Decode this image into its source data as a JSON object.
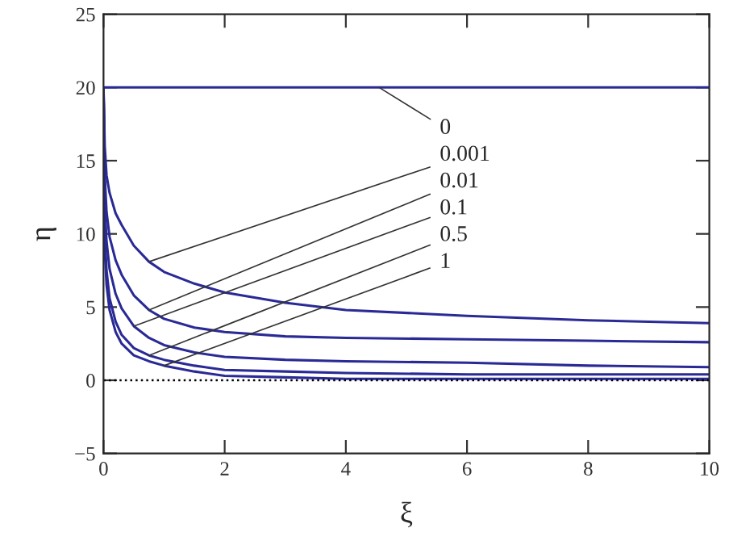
{
  "chart_data": {
    "type": "line",
    "xlabel": "ξ",
    "ylabel": "η",
    "xlim": [
      0,
      10
    ],
    "ylim": [
      -5,
      25
    ],
    "xticks": [
      0,
      2,
      4,
      6,
      8,
      10
    ],
    "yticks": [
      -5,
      0,
      5,
      10,
      15,
      20,
      25
    ],
    "grid": false,
    "legend": false,
    "marker": "none",
    "line_style": "solid",
    "ref_lines": [
      {
        "axis": "y",
        "value": 0,
        "color": "#000000",
        "line_style": "dotted"
      }
    ],
    "series": [
      {
        "color": "#2a2a96",
        "x": [
          0,
          10
        ],
        "values": [
          20,
          20
        ]
      },
      {
        "color": "#2a2a96",
        "x": [
          0,
          0.02,
          0.05,
          0.1,
          0.2,
          0.3,
          0.5,
          0.75,
          1,
          1.5,
          2,
          3,
          4,
          6,
          8,
          10
        ],
        "values": [
          20,
          16,
          14,
          12.8,
          11.4,
          10.6,
          9.2,
          8.1,
          7.4,
          6.6,
          6.0,
          5.3,
          4.8,
          4.4,
          4.1,
          3.9
        ]
      },
      {
        "color": "#2a2a96",
        "x": [
          0,
          0.02,
          0.05,
          0.1,
          0.2,
          0.3,
          0.5,
          0.75,
          1,
          1.5,
          2,
          3,
          4,
          6,
          8,
          10
        ],
        "values": [
          20,
          14,
          11.5,
          9.8,
          8.2,
          7.2,
          5.8,
          4.8,
          4.2,
          3.6,
          3.3,
          3.0,
          2.9,
          2.8,
          2.7,
          2.6
        ]
      },
      {
        "color": "#2a2a96",
        "x": [
          0,
          0.02,
          0.05,
          0.1,
          0.2,
          0.3,
          0.5,
          0.75,
          1,
          1.5,
          2,
          3,
          4,
          6,
          8,
          10
        ],
        "values": [
          20,
          12,
          9.5,
          7.6,
          5.9,
          4.9,
          3.7,
          2.9,
          2.4,
          1.9,
          1.6,
          1.4,
          1.3,
          1.2,
          1.0,
          0.9
        ]
      },
      {
        "color": "#2a2a96",
        "x": [
          0,
          0.02,
          0.05,
          0.1,
          0.2,
          0.3,
          0.5,
          0.75,
          1,
          1.5,
          2,
          3,
          4,
          6,
          8,
          10
        ],
        "values": [
          20,
          10,
          7.5,
          5.6,
          4.0,
          3.1,
          2.2,
          1.7,
          1.4,
          1.0,
          0.7,
          0.6,
          0.5,
          0.4,
          0.4,
          0.4
        ]
      },
      {
        "color": "#2a2a96",
        "x": [
          0,
          0.02,
          0.05,
          0.1,
          0.2,
          0.3,
          0.5,
          0.75,
          1,
          1.5,
          2,
          3,
          4,
          6,
          8,
          10
        ],
        "values": [
          20,
          9,
          6.5,
          4.8,
          3.3,
          2.5,
          1.7,
          1.3,
          1.0,
          0.6,
          0.3,
          0.2,
          0.1,
          0.1,
          0.1,
          0.1
        ]
      }
    ],
    "annotations": [
      {
        "text": "0",
        "x": 4.55,
        "y": 20
      },
      {
        "text": "0.001",
        "x": 0.75,
        "y": 8.1
      },
      {
        "text": "0.01",
        "x": 0.75,
        "y": 4.8
      },
      {
        "text": "0.1",
        "x": 0.5,
        "y": 3.7
      },
      {
        "text": "0.5",
        "x": 0.75,
        "y": 1.7
      },
      {
        "text": "1",
        "x": 1.0,
        "y": 1.0
      }
    ]
  }
}
